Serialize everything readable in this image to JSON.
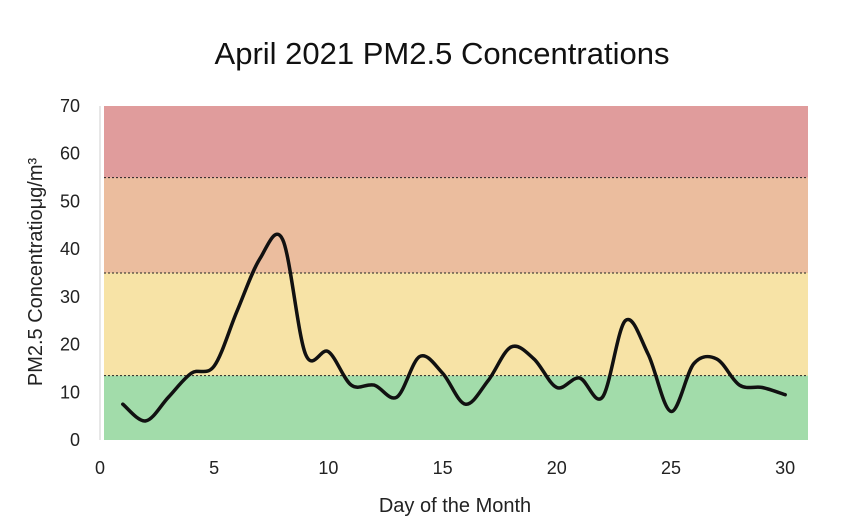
{
  "chart_data": {
    "type": "line",
    "title": "April 2021 PM2.5 Concentrations",
    "xlabel": "Day of the Month",
    "ylabel": "PM2.5 Concentratioμg/m³",
    "xlim": [
      0,
      31
    ],
    "ylim": [
      0,
      70
    ],
    "xticks": [
      "0",
      "5",
      "10",
      "15",
      "20",
      "25",
      "30"
    ],
    "yticks": [
      "0",
      "10",
      "20",
      "30",
      "40",
      "50",
      "60",
      "70"
    ],
    "grid": false,
    "bands": [
      {
        "from": 0,
        "to": 13.5,
        "color": "#a2dcaa"
      },
      {
        "from": 13.5,
        "to": 35,
        "color": "#f7e3a6"
      },
      {
        "from": 35,
        "to": 55,
        "color": "#ebbd9e"
      },
      {
        "from": 55,
        "to": 70,
        "color": "#e09c9c"
      }
    ],
    "series": [
      {
        "color": "#111111",
        "x": [
          1,
          2,
          3,
          4,
          5,
          6,
          7,
          8,
          9,
          10,
          11,
          12,
          13,
          14,
          15,
          16,
          17,
          18,
          19,
          20,
          21,
          22,
          23,
          24,
          25,
          26,
          27,
          28,
          29,
          30
        ],
        "values": [
          7.5,
          4,
          9,
          14,
          15.5,
          27,
          38,
          42,
          18,
          18.5,
          11.5,
          11.5,
          9,
          17.5,
          14,
          7.5,
          12.5,
          19.5,
          17,
          11,
          13,
          9,
          25,
          18,
          6,
          16,
          17,
          11.5,
          11,
          9.5
        ]
      }
    ]
  }
}
